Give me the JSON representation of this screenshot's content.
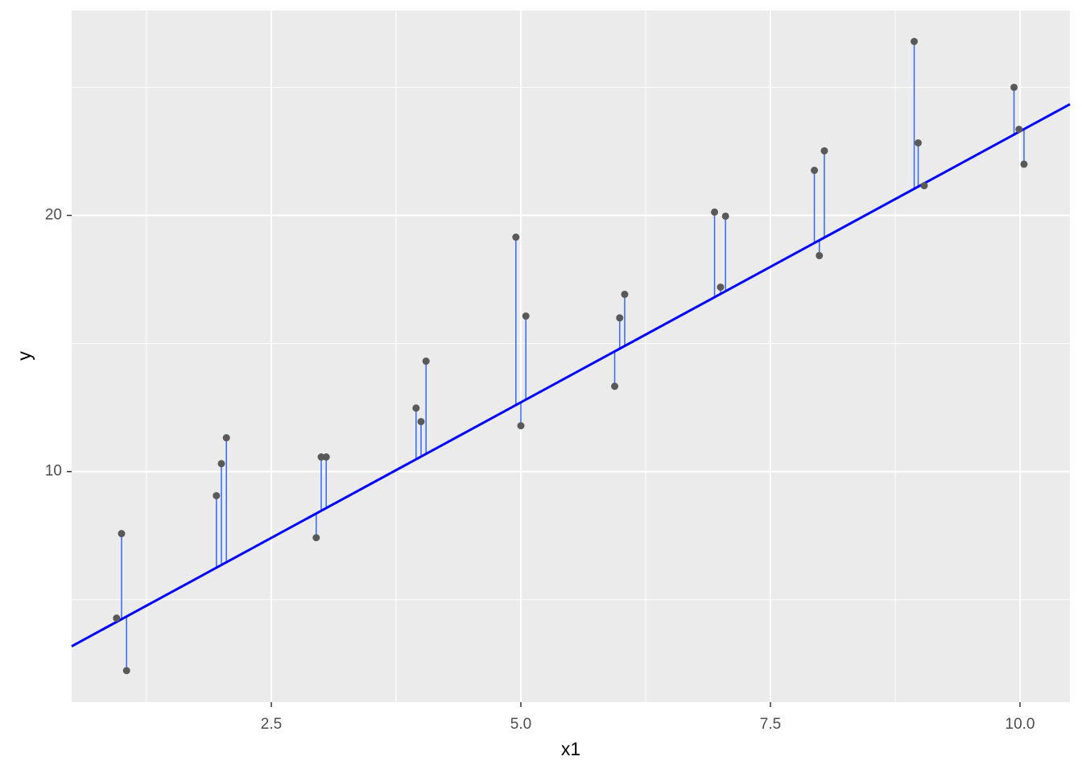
{
  "chart_data": {
    "type": "scatter",
    "x_label": "x1",
    "y_label": "y",
    "x": [
      0.95,
      1.0,
      1.05,
      1.95,
      2.0,
      2.05,
      2.95,
      3.0,
      3.05,
      3.95,
      4.0,
      4.05,
      4.95,
      5.0,
      5.05,
      5.94,
      5.99,
      6.04,
      6.94,
      7.0,
      7.05,
      7.94,
      7.99,
      8.04,
      8.94,
      8.98,
      9.04,
      9.94,
      9.99,
      10.04
    ],
    "y": [
      4.28,
      7.58,
      2.23,
      9.06,
      10.31,
      11.32,
      7.42,
      10.57,
      10.57,
      12.48,
      11.95,
      14.31,
      19.15,
      11.79,
      16.07,
      13.33,
      16.0,
      16.92,
      20.13,
      17.2,
      19.97,
      21.76,
      18.43,
      22.52,
      26.79,
      22.83,
      21.16,
      25.0,
      23.36,
      22.0
    ],
    "point_color": "#595959",
    "fitted": [
      4.13,
      4.24,
      4.34,
      6.25,
      6.35,
      6.46,
      8.36,
      8.47,
      8.57,
      10.48,
      10.58,
      10.69,
      12.59,
      12.7,
      12.81,
      14.69,
      14.79,
      14.9,
      16.81,
      16.93,
      17.04,
      18.92,
      19.03,
      19.13,
      21.04,
      21.12,
      21.25,
      23.15,
      23.26,
      23.36
    ],
    "segment_color": "#3366ff",
    "line": {
      "x": [
        0.5,
        10.5
      ],
      "y": [
        3.18,
        24.34
      ],
      "color": "#0000ff"
    },
    "xlim": [
      0.5,
      10.5
    ],
    "ylim": [
      1,
      28
    ],
    "xticks": [
      2.5,
      {
        "value": 5,
        "label": "5.0"
      },
      7.5,
      {
        "value": 10,
        "label": "10.0"
      }
    ],
    "yticks": [
      10,
      20
    ],
    "x_minor_breaks": [
      1.25,
      3.75,
      6.25,
      8.75
    ],
    "y_minor_breaks": [
      5,
      15,
      25
    ],
    "grid": true
  }
}
